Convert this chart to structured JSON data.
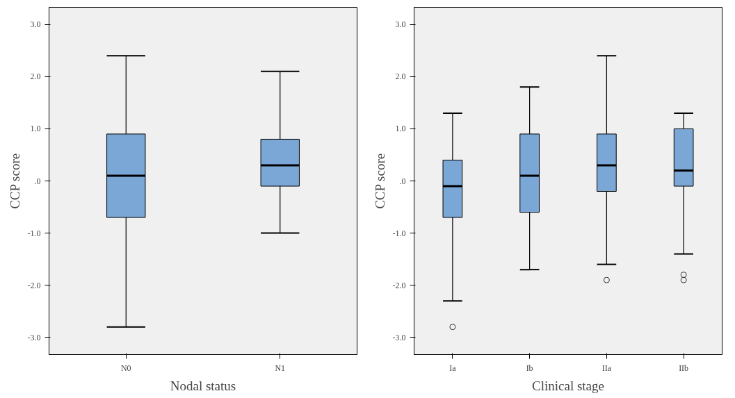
{
  "chart_data": [
    {
      "type": "box",
      "xlabel": "Nodal status",
      "ylabel": "CCP score",
      "categories": [
        "N0",
        "N1"
      ],
      "color": "#7aa7d6",
      "grid": false,
      "ylim": [
        -3.33,
        3.33
      ],
      "yticks": [
        {
          "value": -3,
          "label": "-3.0"
        },
        {
          "value": -2,
          "label": "-2.0"
        },
        {
          "value": -1,
          "label": "-1.0"
        },
        {
          "value": 0,
          "label": ".0"
        },
        {
          "value": 1,
          "label": "1.0"
        },
        {
          "value": 2,
          "label": "2.0"
        },
        {
          "value": 3,
          "label": "3.0"
        }
      ],
      "boxes": [
        {
          "low": -2.8,
          "q1": -0.7,
          "median": 0.1,
          "q3": 0.9,
          "high": 2.4
        },
        {
          "low": -1.0,
          "q1": -0.1,
          "median": 0.3,
          "q3": 0.8,
          "high": 2.1
        }
      ]
    },
    {
      "type": "box",
      "xlabel": "Clinical stage",
      "ylabel": "CCP score",
      "categories": [
        "Ia",
        "Ib",
        "IIa",
        "IIb"
      ],
      "color": "#7aa7d6",
      "grid": false,
      "ylim": [
        -3.33,
        3.33
      ],
      "yticks": [
        {
          "value": -3,
          "label": "-3.0"
        },
        {
          "value": -2,
          "label": "-2.0"
        },
        {
          "value": -1,
          "label": "-1.0"
        },
        {
          "value": 0,
          "label": ".0"
        },
        {
          "value": 1,
          "label": "1.0"
        },
        {
          "value": 2,
          "label": "2.0"
        },
        {
          "value": 3,
          "label": "3.0"
        }
      ],
      "boxes": [
        {
          "low": -2.3,
          "q1": -0.7,
          "median": -0.1,
          "q3": 0.4,
          "high": 1.3,
          "outliers": [
            -2.8
          ]
        },
        {
          "low": -1.7,
          "q1": -0.6,
          "median": 0.1,
          "q3": 0.9,
          "high": 1.8
        },
        {
          "low": -1.6,
          "q1": -0.2,
          "median": 0.3,
          "q3": 0.9,
          "high": 2.4,
          "outliers": [
            -1.9
          ]
        },
        {
          "low": -1.4,
          "q1": -0.1,
          "median": 0.2,
          "q3": 1.0,
          "high": 1.3,
          "outliers": [
            -1.8,
            -1.9
          ]
        }
      ]
    }
  ]
}
